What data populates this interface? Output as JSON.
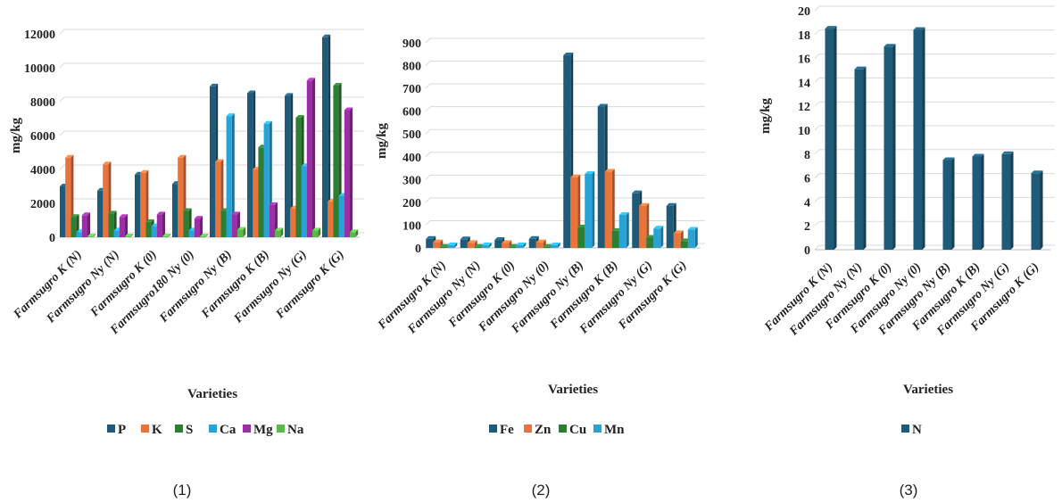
{
  "colors": {
    "P": "#1f5a78",
    "K": "#e8743b",
    "S": "#2e7d32",
    "Ca": "#29a3d6",
    "Mg": "#9b2fa6",
    "Na": "#5bb84a",
    "Fe": "#1f5a78",
    "Zn": "#e8743b",
    "Cu": "#2e7d32",
    "Mn": "#29a3d6",
    "N": "#1f5a78",
    "grid": "#d9d9d9"
  },
  "chart_data": [
    {
      "type": "bar",
      "caption": "(1)",
      "xlabel": "Varieties",
      "ylabel": "mg/kg",
      "ylim": [
        0,
        12000
      ],
      "yticks": [
        0,
        2000,
        4000,
        6000,
        8000,
        10000,
        12000
      ],
      "grid": true,
      "legend_position": "bottom",
      "categories": [
        "Farmsugro K (N)",
        "Farmsugro Ny (N)",
        "Farmsugro K  (0)",
        "Farmsugro180 Ny  (0)",
        "Farmsugro Ny (B)",
        "Farmsugro K  (B)",
        "Farmsugro Ny (G)",
        "Farmsugro K  (G)"
      ],
      "series": [
        {
          "name": "P",
          "values": [
            3000,
            2750,
            3700,
            3150,
            8900,
            8500,
            8350,
            11800
          ]
        },
        {
          "name": "K",
          "values": [
            4700,
            4300,
            3800,
            4700,
            4450,
            4000,
            1700,
            2100
          ]
        },
        {
          "name": "S",
          "values": [
            1200,
            1400,
            900,
            1550,
            1550,
            5300,
            7050,
            8950
          ]
        },
        {
          "name": "Ca",
          "values": [
            300,
            400,
            650,
            400,
            7150,
            6700,
            4200,
            2450
          ]
        },
        {
          "name": "Mg",
          "values": [
            1300,
            1200,
            1350,
            1100,
            1350,
            1900,
            9250,
            7500
          ]
        },
        {
          "name": "Na",
          "values": [
            50,
            50,
            50,
            50,
            450,
            400,
            400,
            300
          ]
        }
      ]
    },
    {
      "type": "bar",
      "caption": "(2)",
      "xlabel": "Varieties",
      "ylabel": "mg/kg",
      "ylim": [
        0,
        900
      ],
      "yticks": [
        0,
        100,
        200,
        300,
        400,
        500,
        600,
        700,
        800,
        900
      ],
      "grid": true,
      "legend_position": "bottom",
      "categories": [
        "Farmsugro K (N)",
        "Farmsugro Ny (N)",
        "Farmsugro K  (0)",
        "Farmsugro Ny  (0)",
        "Farmsugro Ny (B)",
        "Farmsugro K  (B)",
        "Farmsugro Ny (G)",
        "Farmsugro K  (G)"
      ],
      "series": [
        {
          "name": "Fe",
          "values": [
            40,
            38,
            35,
            40,
            845,
            620,
            240,
            185
          ]
        },
        {
          "name": "Zn",
          "values": [
            25,
            22,
            22,
            25,
            310,
            335,
            185,
            65
          ]
        },
        {
          "name": "Cu",
          "values": [
            5,
            5,
            5,
            5,
            90,
            75,
            45,
            30
          ]
        },
        {
          "name": "Mn",
          "values": [
            12,
            12,
            12,
            12,
            325,
            145,
            85,
            80
          ]
        }
      ]
    },
    {
      "type": "bar",
      "caption": "(3)",
      "xlabel": "Varieties",
      "ylabel": "mg/kg",
      "ylim": [
        0,
        20
      ],
      "yticks": [
        0,
        2,
        4,
        6,
        8,
        10,
        12,
        14,
        16,
        18,
        20
      ],
      "grid": true,
      "legend_position": "bottom",
      "categories": [
        "Farmsugro K (N)",
        "Farmsugro Ny (N)",
        "Farmsugro K  (0)",
        "Farmsugro Ny  (0)",
        "Farmsugro Ny  (B)",
        "Farmsugro K  (B)",
        "Farmsugro Ny (G)",
        "Farmsugro K  (G)"
      ],
      "series": [
        {
          "name": "N",
          "values": [
            18.5,
            15.1,
            17.0,
            18.4,
            7.5,
            7.8,
            8.0,
            6.4
          ]
        }
      ]
    }
  ]
}
